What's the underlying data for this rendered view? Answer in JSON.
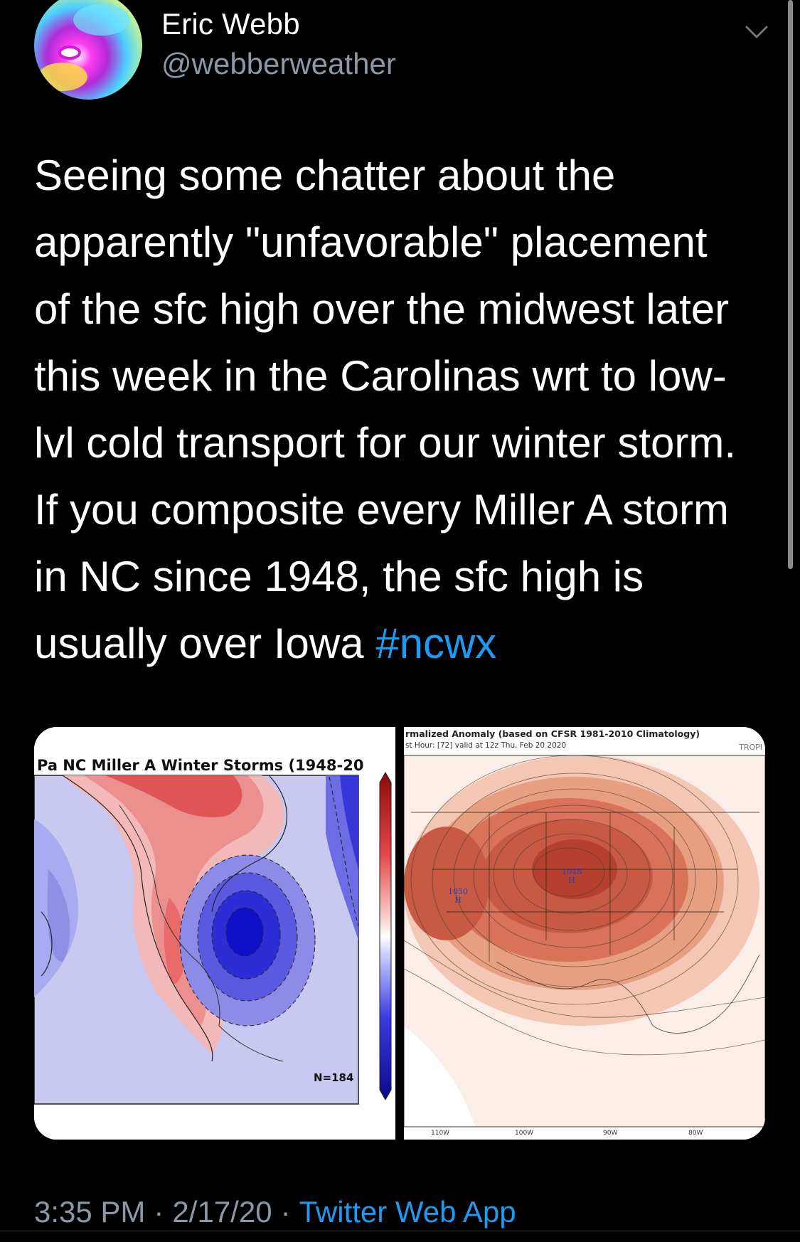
{
  "user": {
    "display_name": "Eric Webb",
    "handle": "@webberweather"
  },
  "tweet": {
    "lines": [
      "Seeing some chatter about the",
      "apparently \"unfavorable\" placement",
      "of the sfc high over the midwest later",
      "this week in the Carolinas wrt to low-",
      "lvl cold transport for our winter storm.",
      "If you composite every Miller A storm",
      "in NC since 1948, the sfc high is"
    ],
    "last_line_text": "usually over Iowa ",
    "hashtag": "#ncwx"
  },
  "media": {
    "left": {
      "title": "Pa NC Miller A Winter Storms (1948-20",
      "sample_size": "N=184"
    },
    "right": {
      "title": "rmalized Anomaly (based on CFSR 1981-2010 Climatology)",
      "subtitle": "st Hour: [72]   valid at 12z Thu, Feb 20 2020",
      "brand": "TROPI",
      "high_1_value": "1048",
      "high_1_symbol": "H",
      "high_2_value": "1050",
      "high_2_symbol": "H",
      "lon_labels": [
        "110W",
        "100W",
        "90W",
        "80W"
      ]
    }
  },
  "meta": {
    "time": "3:35 PM",
    "date": "2/17/20",
    "separator": "·",
    "source": "Twitter Web App"
  },
  "colors": {
    "background": "#000000",
    "text": "#ffffff",
    "secondary": "#8b98a5",
    "link": "#1d9bf0"
  }
}
